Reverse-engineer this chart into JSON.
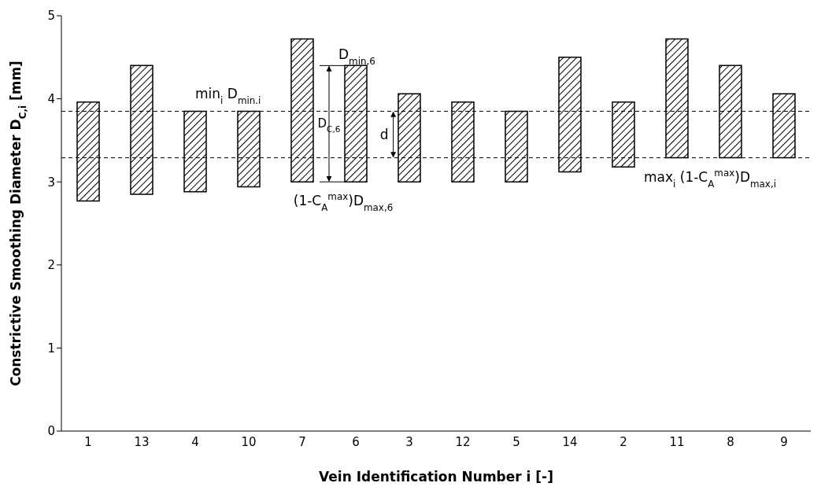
{
  "chart_data": {
    "type": "bar",
    "xlabel": "Vein Identification Number i [-]",
    "ylabel": "Constrictive Smoothing Diameter D$_{C,i}$ [mm]",
    "categories": [
      "1",
      "13",
      "4",
      "10",
      "7",
      "6",
      "3",
      "12",
      "5",
      "14",
      "2",
      "11",
      "8",
      "9"
    ],
    "base": [
      2.77,
      2.85,
      2.88,
      2.94,
      3.0,
      3.0,
      3.0,
      3.0,
      3.0,
      3.12,
      3.18,
      3.29,
      3.29,
      3.29
    ],
    "values": [
      1.19,
      1.55,
      0.97,
      0.91,
      1.72,
      1.4,
      1.06,
      0.96,
      0.85,
      1.38,
      0.78,
      1.43,
      1.11,
      0.77
    ],
    "color": "#000000",
    "ylim": [
      0,
      5
    ],
    "yticks": [
      0,
      1,
      2,
      3,
      4,
      5
    ],
    "ref_lines": [
      {
        "axis": "y",
        "value": 3.85,
        "line_style": "dashed",
        "color": "#000000"
      },
      {
        "axis": "y",
        "value": 3.29,
        "line_style": "dashed",
        "color": "#000000"
      }
    ],
    "annotations": [
      {
        "text": "min$_{i}$ D$_{min.i}$",
        "x": "4",
        "y": 3.85
      },
      {
        "text": "D$_{min,6}$",
        "x": "6",
        "y": 4.4
      },
      "D$_{C,6}$",
      {
        "text": "(1-C$_{A}$$^{max}$)D$_{max,6}$",
        "x": "6",
        "y": 3.0
      },
      "d",
      {
        "text": "max$_{i}$ (1-C$_{A}$$^{max}$)D$_{max,i}$",
        "x": "11",
        "y": 3.29
      }
    ]
  }
}
